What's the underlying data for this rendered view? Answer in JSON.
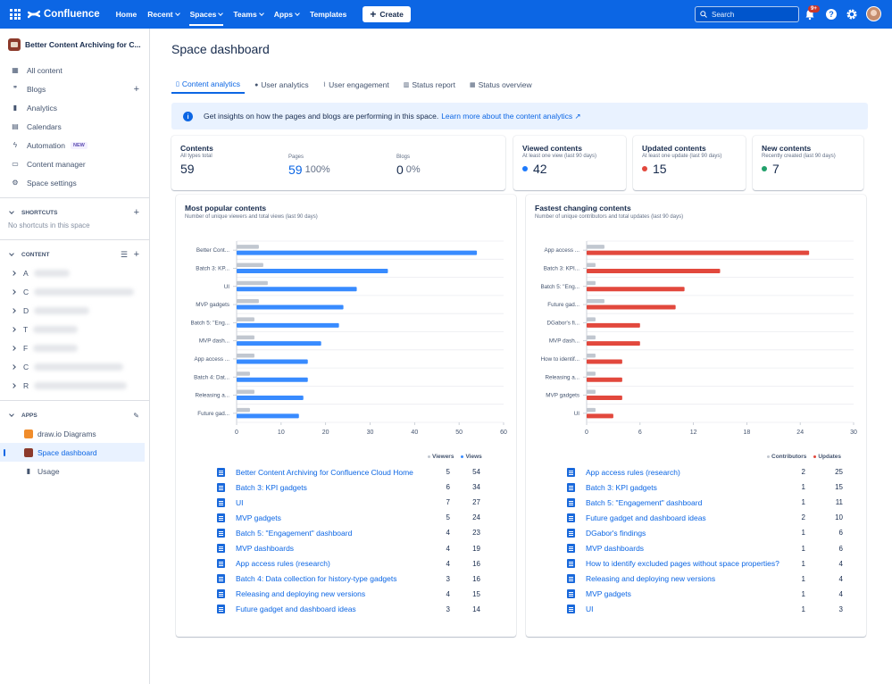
{
  "nav": {
    "product": "Confluence",
    "items": [
      {
        "label": "Home",
        "caret": false,
        "active": false
      },
      {
        "label": "Recent",
        "caret": true,
        "active": false
      },
      {
        "label": "Spaces",
        "caret": true,
        "active": true
      },
      {
        "label": "Teams",
        "caret": true,
        "active": false
      },
      {
        "label": "Apps",
        "caret": true,
        "active": false
      },
      {
        "label": "Templates",
        "caret": false,
        "active": false
      }
    ],
    "create_label": "Create",
    "search_placeholder": "Search",
    "notifications_badge": "9+"
  },
  "sidebar": {
    "space_name": "Better Content Archiving for C...",
    "items": [
      {
        "label": "All content",
        "icon": "grid-icon"
      },
      {
        "label": "Blogs",
        "icon": "quote-icon"
      },
      {
        "label": "Analytics",
        "icon": "bar-chart-icon"
      },
      {
        "label": "Calendars",
        "icon": "calendar-icon"
      },
      {
        "label": "Automation",
        "icon": "lightning-icon",
        "badge": "NEW"
      },
      {
        "label": "Content manager",
        "icon": "folder-icon"
      },
      {
        "label": "Space settings",
        "icon": "gear-icon"
      }
    ],
    "shortcuts_heading": "SHORTCUTS",
    "shortcuts_empty": "No shortcuts in this space",
    "content_heading": "CONTENT",
    "tree_letters": [
      "A",
      "C",
      "D",
      "T",
      "F",
      "C",
      "R"
    ],
    "apps_heading": "APPS",
    "apps": [
      {
        "label": "draw.io Diagrams",
        "icon": "drawio-icon"
      },
      {
        "label": "Space dashboard",
        "icon": "dashboard-icon",
        "selected": true
      },
      {
        "label": "Usage",
        "icon": "usage-icon"
      }
    ]
  },
  "main": {
    "title": "Space dashboard",
    "tabs": [
      {
        "label": "Content analytics",
        "active": true
      },
      {
        "label": "User analytics",
        "active": false
      },
      {
        "label": "User engagement",
        "active": false
      },
      {
        "label": "Status report",
        "active": false
      },
      {
        "label": "Status overview",
        "active": false
      }
    ],
    "info_text": "Get insights on how the pages and blogs are performing in this space.",
    "info_link": "Learn more about the content analytics ↗",
    "contents": {
      "title": "Contents",
      "total_label": "All types total",
      "total": "59",
      "pages_label": "Pages",
      "pages": "59",
      "pages_pct": "100%",
      "blogs_label": "Blogs",
      "blogs": "0",
      "blogs_pct": "0%"
    },
    "viewed": {
      "title": "Viewed contents",
      "sub": "At least one view (last 90 days)",
      "value": "42",
      "dot": "#1d7afc"
    },
    "updated": {
      "title": "Updated contents",
      "sub": "At least one update (last 90 days)",
      "value": "15",
      "dot": "#e2483d"
    },
    "new": {
      "title": "New contents",
      "sub": "Recently created (last 90 days)",
      "value": "7",
      "dot": "#22a06b"
    }
  },
  "popular": {
    "title": "Most popular contents",
    "subtitle": "Number of unique viewers and total views (last 90 days)",
    "legend": [
      "Viewers",
      "Views"
    ],
    "rows": [
      {
        "title": "Better Content Archiving for Confluence Cloud Home",
        "viewers": "5",
        "views": "54"
      },
      {
        "title": "Batch 3: KPI gadgets",
        "viewers": "6",
        "views": "34"
      },
      {
        "title": "UI",
        "viewers": "7",
        "views": "27"
      },
      {
        "title": "MVP gadgets",
        "viewers": "5",
        "views": "24"
      },
      {
        "title": "Batch 5: \"Engagement\" dashboard",
        "viewers": "4",
        "views": "23"
      },
      {
        "title": "MVP dashboards",
        "viewers": "4",
        "views": "19"
      },
      {
        "title": "App access rules (research)",
        "viewers": "4",
        "views": "16"
      },
      {
        "title": "Batch 4: Data collection for history-type gadgets",
        "viewers": "3",
        "views": "16"
      },
      {
        "title": "Releasing and deploying new versions",
        "viewers": "4",
        "views": "15"
      },
      {
        "title": "Future gadget and dashboard ideas",
        "viewers": "3",
        "views": "14"
      }
    ]
  },
  "changing": {
    "title": "Fastest changing contents",
    "subtitle": "Number of unique contributors and total updates (last 90 days)",
    "legend": [
      "Contributors",
      "Updates"
    ],
    "rows": [
      {
        "title": "App access rules (research)",
        "contributors": "2",
        "updates": "25"
      },
      {
        "title": "Batch 3: KPI gadgets",
        "contributors": "1",
        "updates": "15"
      },
      {
        "title": "Batch 5: \"Engagement\" dashboard",
        "contributors": "1",
        "updates": "11"
      },
      {
        "title": "Future gadget and dashboard ideas",
        "contributors": "2",
        "updates": "10"
      },
      {
        "title": "DGabor's findings",
        "contributors": "1",
        "updates": "6"
      },
      {
        "title": "MVP dashboards",
        "contributors": "1",
        "updates": "6"
      },
      {
        "title": "How to identify excluded pages without space properties?",
        "contributors": "1",
        "updates": "4"
      },
      {
        "title": "Releasing and deploying new versions",
        "contributors": "1",
        "updates": "4"
      },
      {
        "title": "MVP gadgets",
        "contributors": "1",
        "updates": "4"
      },
      {
        "title": "UI",
        "contributors": "1",
        "updates": "3"
      }
    ]
  },
  "chart_data": [
    {
      "type": "bar",
      "orientation": "horizontal",
      "categories": [
        "Better Cont...",
        "Batch 3: KP...",
        "UI",
        "MVP gadgets",
        "Batch 5: \"Eng...",
        "MVP dash...",
        "App access ...",
        "Batch 4: Dat...",
        "Releasing a...",
        "Future gad..."
      ],
      "series": [
        {
          "name": "Viewers",
          "color": "#c1c7d0",
          "values": [
            5,
            6,
            7,
            5,
            4,
            4,
            4,
            3,
            4,
            3
          ]
        },
        {
          "name": "Views",
          "color": "#388bff",
          "values": [
            54,
            34,
            27,
            24,
            23,
            19,
            16,
            16,
            15,
            14
          ]
        }
      ],
      "xlim": [
        0,
        60
      ],
      "xticks": [
        0,
        10,
        20,
        30,
        40,
        50,
        60
      ],
      "grid": true
    },
    {
      "type": "bar",
      "orientation": "horizontal",
      "categories": [
        "App access ...",
        "Batch 3: KPI...",
        "Batch 5: \"Eng...",
        "Future gad...",
        "DGabor's fi...",
        "MVP dash...",
        "How to identif...",
        "Releasing a...",
        "MVP gadgets",
        "UI"
      ],
      "series": [
        {
          "name": "Contributors",
          "color": "#c1c7d0",
          "values": [
            2,
            1,
            1,
            2,
            1,
            1,
            1,
            1,
            1,
            1
          ]
        },
        {
          "name": "Updates",
          "color": "#e2483d",
          "values": [
            25,
            15,
            11,
            10,
            6,
            6,
            4,
            4,
            4,
            3
          ]
        }
      ],
      "xlim": [
        0,
        30
      ],
      "xticks": [
        0,
        6,
        12,
        18,
        24,
        30
      ],
      "grid": true
    }
  ]
}
